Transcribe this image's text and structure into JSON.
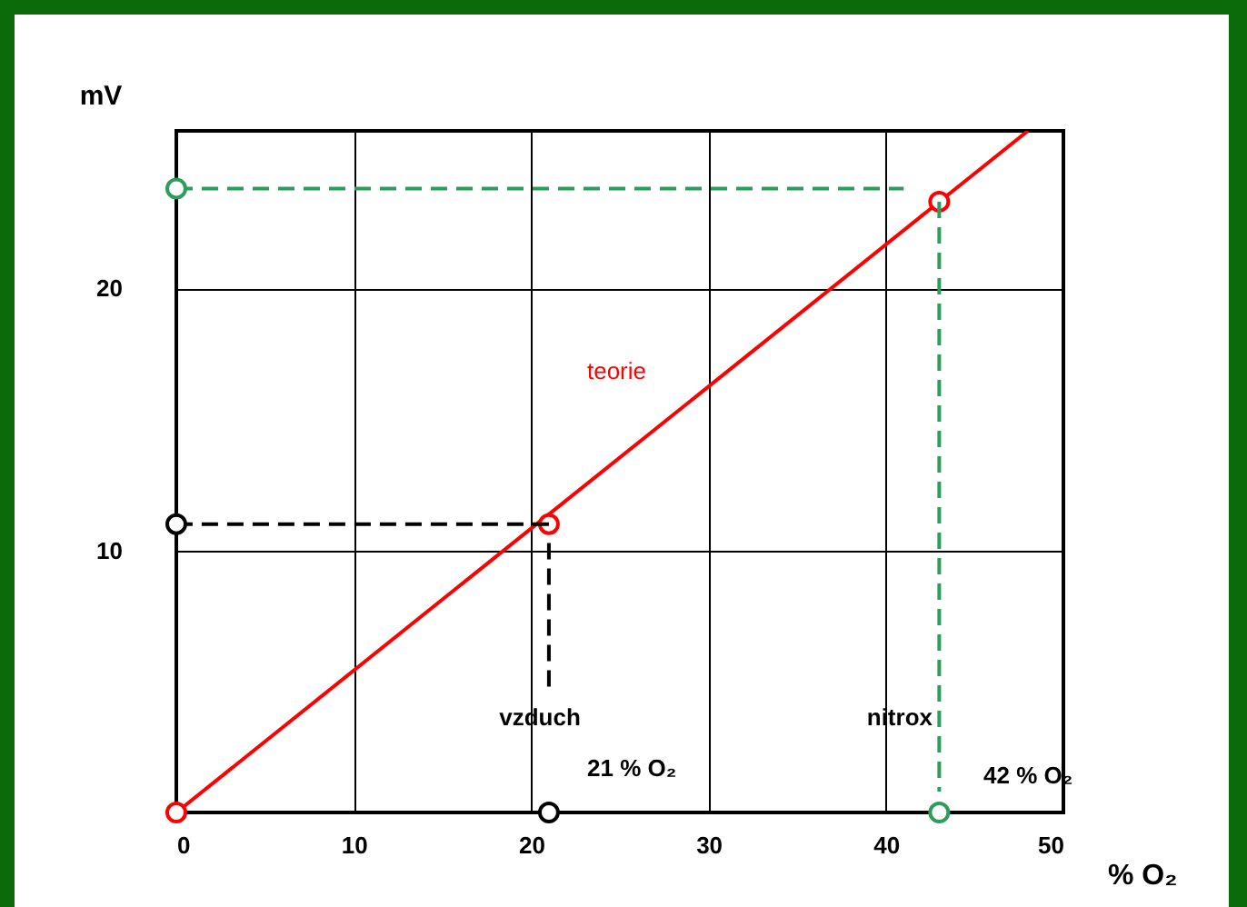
{
  "chart_data": {
    "type": "line",
    "xlabel": "% O₂",
    "ylabel": "mV",
    "xlim": [
      0,
      50
    ],
    "ylim": [
      0,
      26
    ],
    "xticks": [
      0,
      10,
      20,
      30,
      40,
      50
    ],
    "yticks": [
      10,
      20
    ],
    "grid": true,
    "series": [
      {
        "name": "teorie",
        "type": "line",
        "color": "#ff0000",
        "x": [
          0,
          48
        ],
        "values": [
          0,
          26
        ],
        "line_style": "solid",
        "marker": "none"
      },
      {
        "type": "scatter",
        "color": "#ff0000",
        "x": [
          0,
          21,
          43
        ],
        "values": [
          0,
          11,
          23.3
        ],
        "marker": "circle"
      },
      {
        "type": "line",
        "color": "#000000",
        "x": [
          21,
          21
        ],
        "values": [
          4.8,
          10.5
        ],
        "line_style": "dashed",
        "marker": "none"
      },
      {
        "type": "line",
        "color": "#000000",
        "x": [
          21,
          0
        ],
        "values": [
          11,
          11
        ],
        "line_style": "dashed",
        "marker": "none"
      },
      {
        "type": "scatter",
        "color": "#000000",
        "x": [
          0,
          21
        ],
        "values": [
          11,
          0
        ],
        "marker": "circle"
      },
      {
        "type": "line",
        "color": "#2e9c5a",
        "x": [
          0,
          41
        ],
        "values": [
          23.8,
          23.8
        ],
        "line_style": "dashed",
        "marker": "none"
      },
      {
        "type": "line",
        "color": "#2e9c5a",
        "x": [
          43,
          43
        ],
        "values": [
          23.3,
          0.8
        ],
        "line_style": "dashed",
        "marker": "none"
      },
      {
        "type": "scatter",
        "color": "#2e9c5a",
        "x": [
          0,
          43
        ],
        "values": [
          23.8,
          0
        ],
        "marker": "circle"
      }
    ],
    "annotations": [
      "vzduch",
      "21 % O₂",
      "nitrox",
      "42 % O₂"
    ]
  }
}
